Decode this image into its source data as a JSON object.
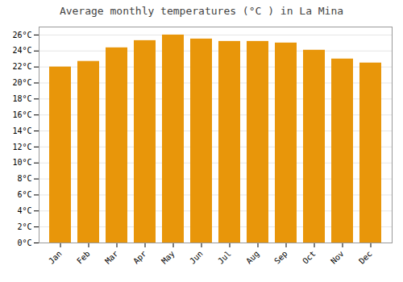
{
  "chart_data": {
    "type": "bar",
    "title": "Average monthly temperatures (°C ) in La Mina",
    "categories": [
      "Jan",
      "Feb",
      "Mar",
      "Apr",
      "May",
      "Jun",
      "Jul",
      "Aug",
      "Sep",
      "Oct",
      "Nov",
      "Dec"
    ],
    "values": [
      22.0,
      22.7,
      24.4,
      25.3,
      26.0,
      25.5,
      25.2,
      25.2,
      25.0,
      24.1,
      23.0,
      22.5
    ],
    "color": "#E8960A",
    "ylim": [
      0,
      27
    ],
    "yticks": [
      {
        "value": 0,
        "label": "0°C"
      },
      {
        "value": 2,
        "label": "2°C"
      },
      {
        "value": 4,
        "label": "4°C"
      },
      {
        "value": 6,
        "label": "6°C"
      },
      {
        "value": 8,
        "label": "8°C"
      },
      {
        "value": 10,
        "label": "10°C"
      },
      {
        "value": 12,
        "label": "12°C"
      },
      {
        "value": 14,
        "label": "14°C"
      },
      {
        "value": 16,
        "label": "16°C"
      },
      {
        "value": 18,
        "label": "18°C"
      },
      {
        "value": 20,
        "label": "20°C"
      },
      {
        "value": 22,
        "label": "22°C"
      },
      {
        "value": 24,
        "label": "24°C"
      },
      {
        "value": 26,
        "label": "26°C"
      }
    ],
    "grid": true
  }
}
